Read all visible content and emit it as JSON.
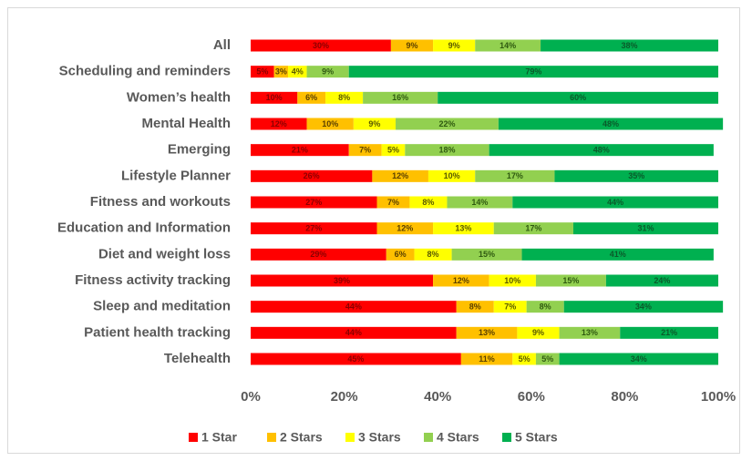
{
  "chart_data": {
    "type": "stacked_barh",
    "categories": [
      "All",
      "Scheduling and reminders",
      "Women’s health",
      "Mental Health",
      "Emerging",
      "Lifestyle Planner",
      "Fitness and workouts",
      "Education and Information",
      "Diet and weight loss",
      "Fitness activity tracking",
      "Sleep and meditation",
      "Patient health tracking",
      "Telehealth"
    ],
    "series": [
      {
        "name": "1 Star",
        "color": "#ff0000",
        "values": [
          30,
          5,
          10,
          12,
          21,
          26,
          27,
          27,
          29,
          39,
          44,
          44,
          45
        ],
        "value_labels": [
          "30%",
          "5%",
          "10%",
          "12%",
          "21%",
          "26%",
          "27%",
          "27%",
          "29%",
          "39%",
          "44%",
          "44%",
          "45%"
        ]
      },
      {
        "name": "2 Stars",
        "color": "#ffc000",
        "values": [
          9,
          3,
          6,
          10,
          7,
          12,
          7,
          12,
          6,
          12,
          8,
          13,
          11
        ],
        "value_labels": [
          "9%",
          "3%",
          "6%",
          "10%",
          "7%",
          "12%",
          "7%",
          "12%",
          "6%",
          "12%",
          "8%",
          "13%",
          "11%"
        ]
      },
      {
        "name": "3 Stars",
        "color": "#ffff00",
        "values": [
          9,
          4,
          8,
          9,
          5,
          10,
          8,
          13,
          8,
          10,
          7,
          9,
          5
        ],
        "value_labels": [
          "9%",
          "4%",
          "8%",
          "9%",
          "5%",
          "10%",
          "8%",
          "13%",
          "8%",
          "10%",
          "7%",
          "9%",
          "5%"
        ]
      },
      {
        "name": "4 Stars",
        "color": "#92d050",
        "values": [
          14,
          9,
          16,
          22,
          18,
          17,
          14,
          17,
          15,
          15,
          8,
          13,
          5
        ],
        "value_labels": [
          "14%",
          "9%",
          "16%",
          "22%",
          "18%",
          "17%",
          "14%",
          "17%",
          "15%",
          "15%",
          "8%",
          "13%",
          "5%"
        ]
      },
      {
        "name": "5 Stars",
        "color": "#00b050",
        "values": [
          38,
          79,
          60,
          48,
          48,
          35,
          44,
          31,
          41,
          24,
          34,
          21,
          34
        ],
        "value_labels": [
          "38%",
          "79%",
          "60%",
          "48%",
          "48%",
          "35%",
          "44%",
          "31%",
          "41%",
          "24%",
          "34%",
          "21%",
          "34%"
        ]
      }
    ],
    "xlim": [
      0,
      100
    ],
    "xticks": [
      {
        "value": 0,
        "label": "0%"
      },
      {
        "value": 20,
        "label": "20%"
      },
      {
        "value": 40,
        "label": "40%"
      },
      {
        "value": 60,
        "label": "60%"
      },
      {
        "value": 80,
        "label": "80%"
      },
      {
        "value": 100,
        "label": "100%"
      }
    ],
    "grid": false,
    "legend": "bottom"
  }
}
